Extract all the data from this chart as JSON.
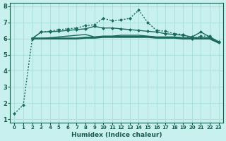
{
  "xlabel": "Humidex (Indice chaleur)",
  "ylabel": "",
  "bg_color": "#c8f0ee",
  "grid_color": "#a8dcd8",
  "line_color": "#1a6b5a",
  "xlim": [
    -0.5,
    23.5
  ],
  "ylim": [
    0.8,
    8.2
  ],
  "xticks": [
    0,
    1,
    2,
    3,
    4,
    5,
    6,
    7,
    8,
    9,
    10,
    11,
    12,
    13,
    14,
    15,
    16,
    17,
    18,
    19,
    20,
    21,
    22,
    23
  ],
  "yticks": [
    1,
    2,
    3,
    4,
    5,
    6,
    7,
    8
  ],
  "series": [
    {
      "x": [
        0,
        1,
        2,
        3,
        4,
        5,
        6,
        7,
        8,
        9,
        10,
        11,
        12,
        13,
        14,
        15,
        16,
        17,
        18,
        19,
        20,
        21,
        22,
        23
      ],
      "y": [
        1.35,
        1.9,
        6.0,
        6.4,
        6.45,
        6.55,
        6.6,
        6.65,
        6.8,
        6.85,
        7.25,
        7.1,
        7.15,
        7.25,
        7.75,
        7.0,
        6.5,
        6.45,
        6.3,
        6.25,
        6.0,
        6.15,
        6.15,
        5.75
      ],
      "style": "dotted",
      "marker": "D",
      "markersize": 2.0,
      "linewidth": 1.0,
      "color": "#1a6b5a"
    },
    {
      "x": [
        2,
        3,
        4,
        5,
        6,
        7,
        8,
        9,
        10,
        11,
        12,
        13,
        14,
        15,
        16,
        17,
        18,
        19,
        20,
        21,
        22,
        23
      ],
      "y": [
        6.0,
        6.0,
        6.0,
        6.0,
        6.0,
        6.0,
        6.05,
        6.05,
        6.1,
        6.1,
        6.1,
        6.1,
        6.1,
        6.1,
        6.05,
        6.05,
        6.05,
        6.0,
        6.0,
        6.0,
        6.0,
        5.75
      ],
      "style": "solid",
      "marker": null,
      "markersize": 0,
      "linewidth": 2.0,
      "color": "#1a6b5a"
    },
    {
      "x": [
        2,
        3,
        4,
        5,
        6,
        7,
        8,
        9,
        10,
        11,
        12,
        13,
        14,
        15,
        16,
        17,
        18,
        19,
        20,
        21,
        22,
        23
      ],
      "y": [
        6.0,
        6.0,
        6.05,
        6.1,
        6.15,
        6.2,
        6.25,
        6.1,
        6.15,
        6.15,
        6.2,
        6.2,
        6.2,
        6.15,
        6.1,
        6.1,
        6.1,
        6.05,
        6.05,
        6.05,
        6.05,
        5.8
      ],
      "style": "solid",
      "marker": null,
      "markersize": 0,
      "linewidth": 1.0,
      "color": "#1a6b5a"
    },
    {
      "x": [
        2,
        3,
        4,
        5,
        6,
        7,
        8,
        9,
        10,
        11,
        12,
        13,
        14,
        15,
        16,
        17,
        18,
        19,
        20,
        21,
        22,
        23
      ],
      "y": [
        6.0,
        6.4,
        6.42,
        6.45,
        6.5,
        6.55,
        6.6,
        6.75,
        6.65,
        6.65,
        6.6,
        6.55,
        6.5,
        6.45,
        6.4,
        6.3,
        6.25,
        6.2,
        6.1,
        6.4,
        6.1,
        5.8
      ],
      "style": "solid",
      "marker": "D",
      "markersize": 2.0,
      "linewidth": 1.0,
      "color": "#1a6b5a"
    }
  ]
}
